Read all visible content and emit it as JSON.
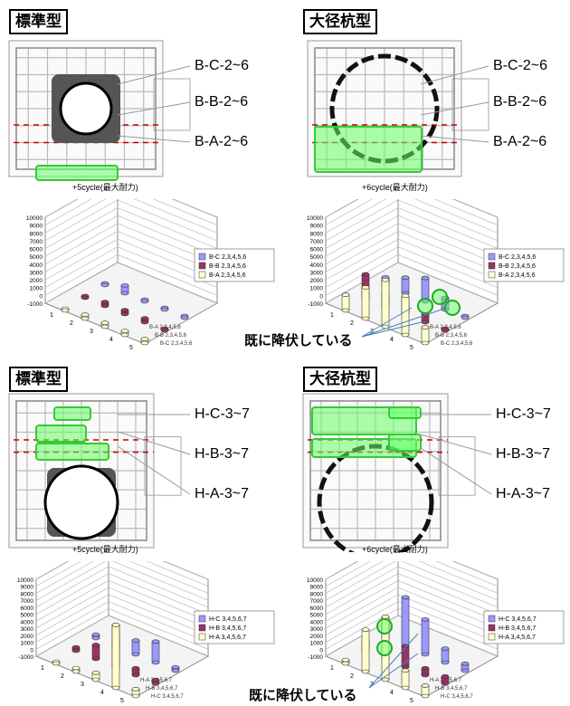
{
  "panels": [
    {
      "badge": "標準型",
      "labels": [
        "B-C-2~6",
        "B-B-2~6",
        "B-A-2~6"
      ],
      "caption": "+5cycle(最大耐力)",
      "legend": [
        "B-C 2,3,4,5,6",
        "B-B 2,3,4,5,6",
        "B-A 2,3,4,5,6"
      ],
      "axis_side": [
        "B-A 2,3,4,5,6",
        "B-B 2,3,4,5,6",
        "B-C 2,3,4,5,6"
      ],
      "yticks": [
        "10000",
        "9000",
        "8000",
        "7000",
        "6000",
        "5000",
        "4000",
        "3000",
        "2000",
        "1000",
        "0",
        "-1000"
      ],
      "xticks": [
        "1",
        "2",
        "3",
        "4",
        "5"
      ]
    },
    {
      "badge": "大径杭型",
      "labels": [
        "B-C-2~6",
        "B-B-2~6",
        "B-A-2~6"
      ],
      "caption": "+6cycle(最大耐力)",
      "legend": [
        "B-C 2,3,4,5,6",
        "B-B 2,3,4,5,6",
        "B-A 2,3,4,5,6"
      ],
      "axis_side": [
        "B-A 2,3,4,5,6",
        "B-B 2,3,4,5,6",
        "B-C 2,3,4,5,6"
      ],
      "yticks": [
        "10000",
        "9000",
        "8000",
        "7000",
        "6000",
        "5000",
        "4000",
        "3000",
        "2000",
        "1000",
        "0",
        "-1000"
      ],
      "xticks": [
        "1",
        "2",
        "3",
        "4",
        "5"
      ]
    },
    {
      "badge": "標準型",
      "labels": [
        "H-C-3~7",
        "H-B-3~7",
        "H-A-3~7"
      ],
      "caption": "+5cycle(最大耐力)",
      "legend": [
        "H-C 3,4,5,6,7",
        "H-B 3,4,5,6,7",
        "H-A 3,4,5,6,7"
      ],
      "axis_side": [
        "H-A 3,4,5,6,7",
        "H-B 3,4,5,6,7",
        "H-C 3,4,5,6,7"
      ],
      "yticks": [
        "10000",
        "9000",
        "8000",
        "7000",
        "6000",
        "5000",
        "4000",
        "3000",
        "2000",
        "1000",
        "0",
        "-1000"
      ],
      "xticks": [
        "1",
        "2",
        "3",
        "4",
        "5"
      ]
    },
    {
      "badge": "大径杭型",
      "labels": [
        "H-C-3~7",
        "H-B-3~7",
        "H-A-3~7"
      ],
      "caption": "+6cycle(最大耐力)",
      "legend": [
        "H-C 3,4,5,6,7",
        "H-B 3,4,5,6,7",
        "H-A 3,4,5,6,7"
      ],
      "axis_side": [
        "H-A 3,4,5,6,7",
        "H-B 3,4,5,6,7",
        "H-C 3,4,5,6,7"
      ],
      "yticks": [
        "10000",
        "9000",
        "8000",
        "7000",
        "6000",
        "5000",
        "4000",
        "3000",
        "2000",
        "1000",
        "0",
        "-1000"
      ],
      "xticks": [
        "1",
        "2",
        "3",
        "4",
        "5"
      ]
    }
  ],
  "annotations": {
    "yielded_top": "既に降伏している",
    "yielded_bottom": "既に降伏している"
  },
  "colors": {
    "series_c": "#9999ff",
    "series_b": "#993366",
    "series_a": "#ffffcc",
    "highlight": "#66ff66",
    "rebar_red": "#cc0000"
  },
  "chart_data": [
    {
      "type": "bar",
      "title": "+5cycle(最大耐力)",
      "categories": [
        "1",
        "2",
        "3",
        "4",
        "5"
      ],
      "ylim": [
        -1000,
        10000
      ],
      "series": [
        {
          "name": "B-C 2,3,4,5,6",
          "values": [
            0,
            1000,
            0,
            0,
            0
          ]
        },
        {
          "name": "B-B 2,3,4,5,6",
          "values": [
            0,
            500,
            500,
            500,
            0
          ]
        },
        {
          "name": "B-A 2,3,4,5,6",
          "values": [
            0,
            500,
            500,
            500,
            500
          ]
        }
      ]
    },
    {
      "type": "bar",
      "title": "+6cycle(最大耐力)",
      "categories": [
        "1",
        "2",
        "3",
        "4",
        "5"
      ],
      "ylim": [
        -1000,
        10000
      ],
      "series": [
        {
          "name": "B-C 2,3,4,5,6",
          "values": [
            1000,
            2000,
            3000,
            1500,
            0
          ]
        },
        {
          "name": "B-B 2,3,4,5,6",
          "values": [
            3000,
            1500,
            2000,
            1000,
            0
          ]
        },
        {
          "name": "B-A 2,3,4,5,6",
          "values": [
            2000,
            4000,
            6000,
            5000,
            2000
          ]
        }
      ]
    },
    {
      "type": "bar",
      "title": "+5cycle(最大耐力)",
      "categories": [
        "1",
        "2",
        "3",
        "4",
        "5"
      ],
      "ylim": [
        -1000,
        10000
      ],
      "series": [
        {
          "name": "H-C 3,4,5,6,7",
          "values": [
            500,
            1000,
            2000,
            3000,
            500
          ]
        },
        {
          "name": "H-B 3,4,5,6,7",
          "values": [
            500,
            2000,
            6000,
            1000,
            500
          ]
        },
        {
          "name": "H-A 3,4,5,6,7",
          "values": [
            0,
            500,
            1000,
            9000,
            1000
          ]
        }
      ]
    },
    {
      "type": "bar",
      "title": "+6cycle(最大耐力)",
      "categories": [
        "1",
        "2",
        "3",
        "4",
        "5"
      ],
      "ylim": [
        -1000,
        10000
      ],
      "series": [
        {
          "name": "H-C 3,4,5,6,7",
          "values": [
            3000,
            7000,
            5000,
            2000,
            1000
          ]
        },
        {
          "name": "H-B 3,4,5,6,7",
          "values": [
            1500,
            1000,
            3000,
            1000,
            1000
          ]
        },
        {
          "name": "H-A 3,4,5,6,7",
          "values": [
            500,
            6000,
            9000,
            2500,
            1500
          ]
        }
      ]
    }
  ]
}
